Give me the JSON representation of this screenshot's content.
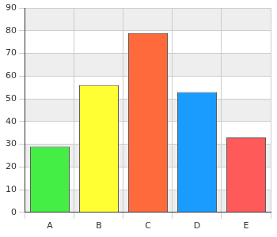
{
  "chart_data": {
    "type": "bar",
    "categories": [
      "A",
      "B",
      "C",
      "D",
      "E"
    ],
    "values": [
      29,
      56,
      79,
      53,
      33
    ],
    "colors": [
      "#44ee44",
      "#ffff33",
      "#ff6a3d",
      "#1a9cff",
      "#ff5a5a"
    ],
    "ylim": [
      0,
      90
    ],
    "yticks": [
      0,
      10,
      20,
      30,
      40,
      50,
      60,
      70,
      80,
      90
    ],
    "grid": true
  }
}
